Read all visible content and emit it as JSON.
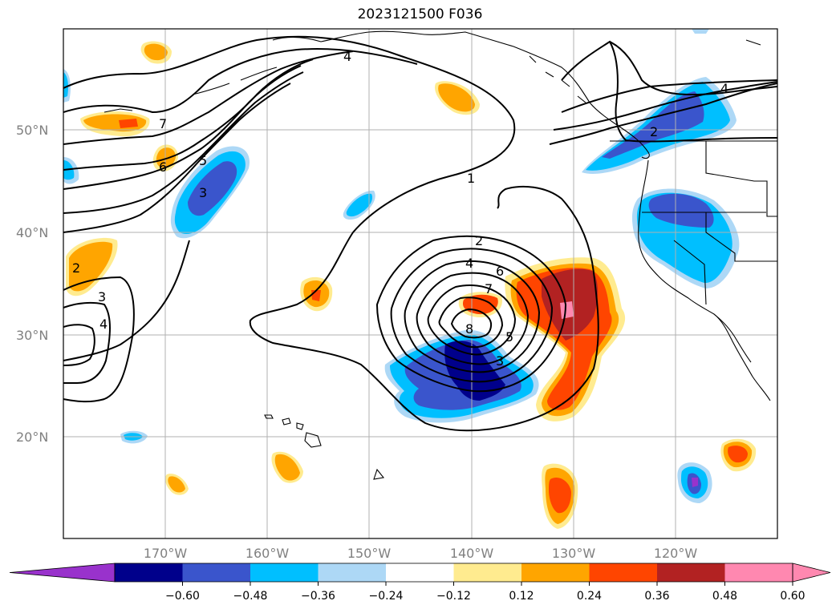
{
  "title": "2023121500 F036",
  "map": {
    "lat_labels": [
      "50°N",
      "40°N",
      "30°N",
      "20°N"
    ],
    "lon_labels": [
      "170°W",
      "160°W",
      "150°W",
      "140°W",
      "130°W",
      "120°W"
    ]
  },
  "colorbar": {
    "ticks": [
      "−0.60",
      "−0.48",
      "−0.36",
      "−0.24",
      "−0.12",
      "0.12",
      "0.24",
      "0.36",
      "0.48",
      "0.60"
    ],
    "colors": [
      "#9932cc",
      "#00008b",
      "#3a55cc",
      "#00bfff",
      "#add8f6",
      "#ffffff",
      "#ffeb8f",
      "#ffa500",
      "#ff4500",
      "#b22222",
      "#ff88b0",
      "#ff88b0"
    ]
  },
  "contour_labels": [
    "1",
    "2",
    "4",
    "6",
    "7",
    "8",
    "5",
    "3",
    "2",
    "3",
    "4",
    "7",
    "6",
    "5",
    "3",
    "4",
    "2",
    "4"
  ]
}
